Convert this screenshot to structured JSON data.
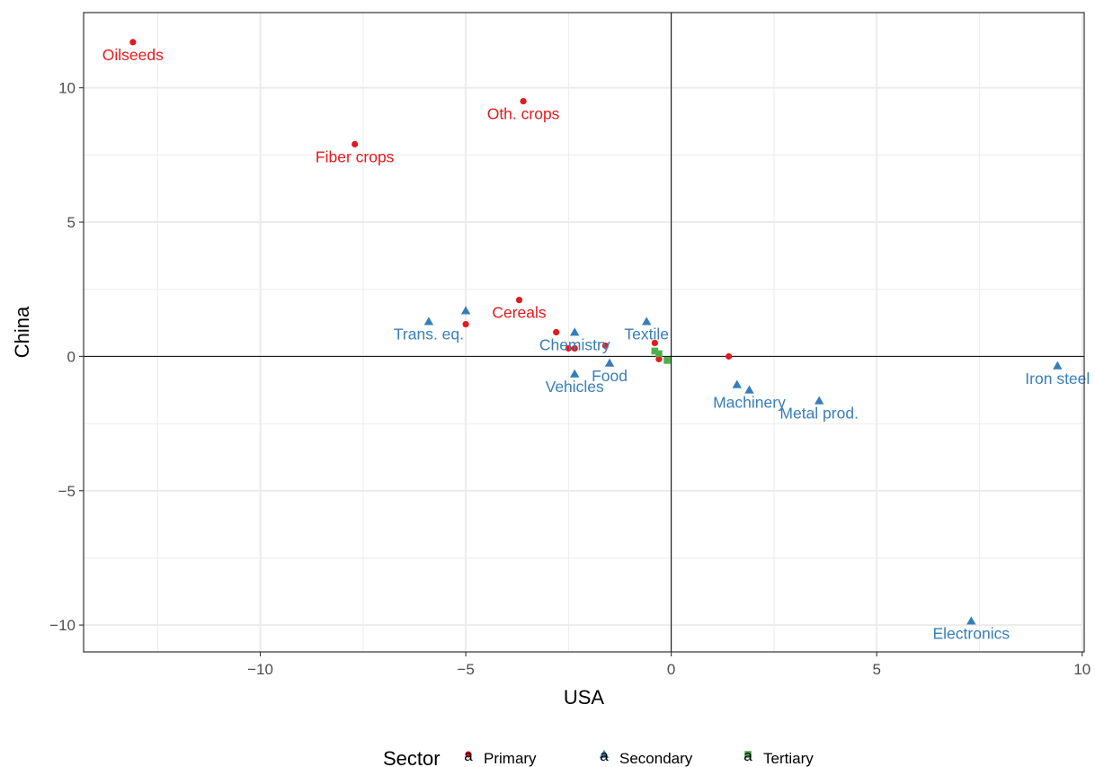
{
  "chart_data": {
    "type": "scatter",
    "xlabel": "USA",
    "ylabel": "China",
    "xlim": [
      -14.3,
      10.05
    ],
    "ylim": [
      -11.0,
      12.8
    ],
    "x_ticks": [
      -10,
      -5,
      0,
      5,
      10
    ],
    "x_tick_labels": [
      "−10",
      "−5",
      "0",
      "5",
      "10"
    ],
    "y_ticks": [
      -10,
      -5,
      0,
      5,
      10
    ],
    "y_tick_labels": [
      "−10",
      "−5",
      "0",
      "5",
      "10"
    ],
    "grid": true,
    "reference_lines": {
      "x": 0,
      "y": 0
    },
    "legend": {
      "title": "Sector",
      "position": "bottom",
      "key_glyph": "a",
      "entries": [
        {
          "label": "Primary",
          "color": "#e41a1c",
          "shape": "circle"
        },
        {
          "label": "Secondary",
          "color": "#377eb8",
          "shape": "triangle"
        },
        {
          "label": "Tertiary",
          "color": "#4daf4a",
          "shape": "square"
        }
      ]
    },
    "series": [
      {
        "name": "Primary",
        "color": "#e41a1c",
        "shape": "circle",
        "points": [
          {
            "x": -13.1,
            "y": 11.7,
            "label": "Oilseeds"
          },
          {
            "x": -3.6,
            "y": 9.5,
            "label": "Oth. crops"
          },
          {
            "x": -7.7,
            "y": 7.9,
            "label": "Fiber crops"
          },
          {
            "x": -3.7,
            "y": 2.1,
            "label": "Cereals"
          },
          {
            "x": -5.0,
            "y": 1.2,
            "label": ""
          },
          {
            "x": -2.8,
            "y": 0.9,
            "label": ""
          },
          {
            "x": -2.5,
            "y": 0.3,
            "label": ""
          },
          {
            "x": -2.35,
            "y": 0.3,
            "label": ""
          },
          {
            "x": -1.6,
            "y": 0.4,
            "label": ""
          },
          {
            "x": -0.4,
            "y": 0.5,
            "label": ""
          },
          {
            "x": -0.3,
            "y": -0.1,
            "label": ""
          },
          {
            "x": 1.4,
            "y": 0.0,
            "label": ""
          }
        ]
      },
      {
        "name": "Secondary",
        "color": "#377eb8",
        "shape": "triangle",
        "points": [
          {
            "x": -5.0,
            "y": 1.7,
            "label": ""
          },
          {
            "x": -5.9,
            "y": 1.3,
            "label": "Trans. eq."
          },
          {
            "x": -2.35,
            "y": 0.9,
            "label": "Chemistry"
          },
          {
            "x": -0.6,
            "y": 1.3,
            "label": "Textile"
          },
          {
            "x": -1.5,
            "y": -0.25,
            "label": "Food"
          },
          {
            "x": -2.35,
            "y": -0.65,
            "label": "Vehicles"
          },
          {
            "x": 1.6,
            "y": -1.05,
            "label": ""
          },
          {
            "x": 1.9,
            "y": -1.25,
            "label": "Machinery"
          },
          {
            "x": 3.6,
            "y": -1.65,
            "label": "Metal prod."
          },
          {
            "x": 9.4,
            "y": -0.35,
            "label": "Iron steel"
          },
          {
            "x": 7.3,
            "y": -9.85,
            "label": "Electronics"
          }
        ]
      },
      {
        "name": "Tertiary",
        "color": "#4daf4a",
        "shape": "square",
        "points": [
          {
            "x": -0.4,
            "y": 0.2,
            "label": ""
          },
          {
            "x": -0.3,
            "y": 0.1,
            "label": ""
          },
          {
            "x": -0.1,
            "y": -0.15,
            "label": ""
          }
        ]
      }
    ]
  }
}
